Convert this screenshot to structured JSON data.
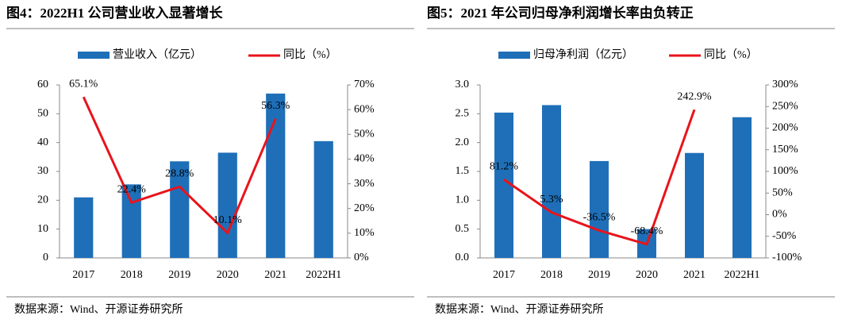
{
  "chart_data": [
    {
      "type": "bar_line",
      "title": "图4：2022H1 公司营业收入显著增长",
      "categories": [
        "2017",
        "2018",
        "2019",
        "2020",
        "2021",
        "2022H1"
      ],
      "series": [
        {
          "name": "营业收入（亿元）",
          "color": "#1f6fb8",
          "kind": "bar",
          "values": [
            21,
            25.5,
            33.5,
            36.5,
            57,
            40.5
          ]
        },
        {
          "name": "同比（%）",
          "color": "#e8141b",
          "kind": "line",
          "axis": "y2",
          "values": [
            65.1,
            22.4,
            28.8,
            10.1,
            56.3,
            null
          ],
          "value_labels": [
            "65.1%",
            "22.4%",
            "28.8%",
            "10.1%",
            "56.3%",
            null
          ]
        }
      ],
      "ylim": [
        0,
        60
      ],
      "yticks": [
        0,
        10,
        20,
        30,
        40,
        50,
        60
      ],
      "y2lim": [
        0,
        70
      ],
      "y2ticks": [
        {
          "value": 0,
          "label": "0%"
        },
        {
          "value": 10,
          "label": "10%"
        },
        {
          "value": 20,
          "label": "20%"
        },
        {
          "value": 30,
          "label": "30%"
        },
        {
          "value": 40,
          "label": "40%"
        },
        {
          "value": 50,
          "label": "50%"
        },
        {
          "value": 60,
          "label": "60%"
        },
        {
          "value": 70,
          "label": "70%"
        }
      ],
      "source": "数据来源：Wind、开源证券研究所"
    },
    {
      "type": "bar_line",
      "title": "图5：2021 年公司归母净利润增长率由负转正",
      "categories": [
        "2017",
        "2018",
        "2019",
        "2020",
        "2021",
        "2022H1"
      ],
      "series": [
        {
          "name": "归母净利润（亿元）",
          "color": "#1f6fb8",
          "kind": "bar",
          "values": [
            2.52,
            2.65,
            1.68,
            0.5,
            1.82,
            2.44
          ]
        },
        {
          "name": "同比（%）",
          "color": "#e8141b",
          "kind": "line",
          "axis": "y2",
          "values": [
            81.2,
            5.3,
            -36.5,
            -68.4,
            242.9,
            null
          ],
          "value_labels": [
            "81.2%",
            "5.3%",
            "-36.5%",
            "-68.4%",
            "242.9%",
            null
          ]
        }
      ],
      "ylim": [
        0,
        3
      ],
      "yticks": [
        {
          "value": 0,
          "label": "0.0"
        },
        0.5,
        {
          "value": 1,
          "label": "1.0"
        },
        1.5,
        {
          "value": 2,
          "label": "2.0"
        },
        2.5,
        {
          "value": 3,
          "label": "3.0"
        }
      ],
      "y2lim": [
        -100,
        300
      ],
      "y2ticks": [
        {
          "value": -100,
          "label": "-100%"
        },
        {
          "value": -50,
          "label": "-50%"
        },
        {
          "value": 0,
          "label": "0%"
        },
        {
          "value": 50,
          "label": "50%"
        },
        {
          "value": 100,
          "label": "100%"
        },
        {
          "value": 150,
          "label": "150%"
        },
        {
          "value": 200,
          "label": "200%"
        },
        {
          "value": 250,
          "label": "250%"
        },
        {
          "value": 300,
          "label": "300%"
        }
      ],
      "source": "数据来源：Wind、开源证券研究所"
    }
  ]
}
